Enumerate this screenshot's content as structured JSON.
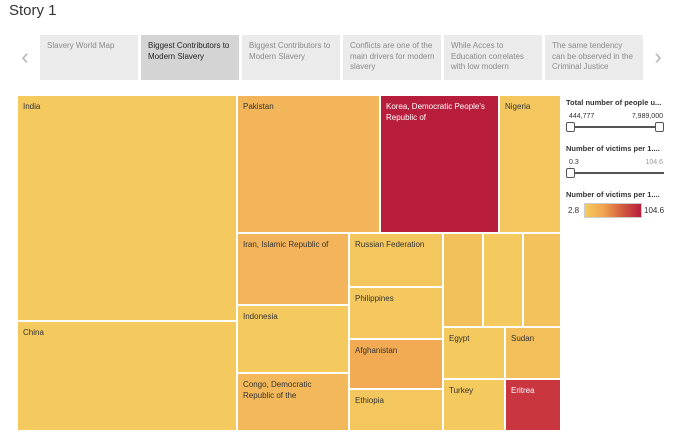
{
  "story": {
    "title": "Story 1"
  },
  "nav": {
    "prev_glyph": "‹",
    "next_glyph": "›"
  },
  "tabs": [
    {
      "label": "Slavery World Map",
      "active": false
    },
    {
      "label": "Biggest Contributors to Modern Slavery",
      "active": true
    },
    {
      "label": "Biggest Contributors to Modern Slavery",
      "active": false
    },
    {
      "label": "Conflicts are one of the main drivers for modern slavery",
      "active": false
    },
    {
      "label": "While Acces to Education correlates with low modern",
      "active": false
    },
    {
      "label": "The same tendency can be observed in the Criminal Justice",
      "active": false
    }
  ],
  "treemap": {
    "countries": {
      "india": "India",
      "china": "China",
      "pakistan": "Pakistan",
      "korea": "Korea, Democratic People's Republic of",
      "nigeria": "Nigeria",
      "iran": "Iran, Islamic Republic of",
      "russia": "Russian Federation",
      "indonesia": "Indonesia",
      "philippines": "Philippines",
      "afghanistan": "Afghanistan",
      "congo": "Congo, Democratic Republic of the",
      "ethiopia": "Ethiopia",
      "egypt": "Egypt",
      "sudan": "Sudan",
      "turkey": "Turkey",
      "eritrea": "Eritrea"
    },
    "colors": {
      "india": "#f4c95e",
      "china": "#f4c95e",
      "pakistan": "#f3b55a",
      "korea": "#b81e3c",
      "nigeria": "#f4c65e",
      "iran": "#f3b45b",
      "russia": "#f4c75e",
      "indonesia": "#f4c95e",
      "philippines": "#f4c85e",
      "afghanistan": "#f2ab53",
      "congo": "#f3b85a",
      "ethiopia": "#f4c65e",
      "egypt": "#f4c95e",
      "sudan": "#f3bf5b",
      "turkey": "#f4c95e",
      "eritrea": "#c93640",
      "small1": "#f3c15c",
      "small2": "#f4c95e",
      "small3": "#f3c25c"
    }
  },
  "legend": {
    "people": {
      "title": "Total number of people u...",
      "min": "444,777",
      "max": "7,989,000"
    },
    "victims_slider": {
      "title": "Number of victims per 1....",
      "min": "0.3",
      "max": "104.6"
    },
    "victims_color": {
      "title": "Number of victims per 1....",
      "min": "2.8",
      "max": "104.6"
    }
  }
}
